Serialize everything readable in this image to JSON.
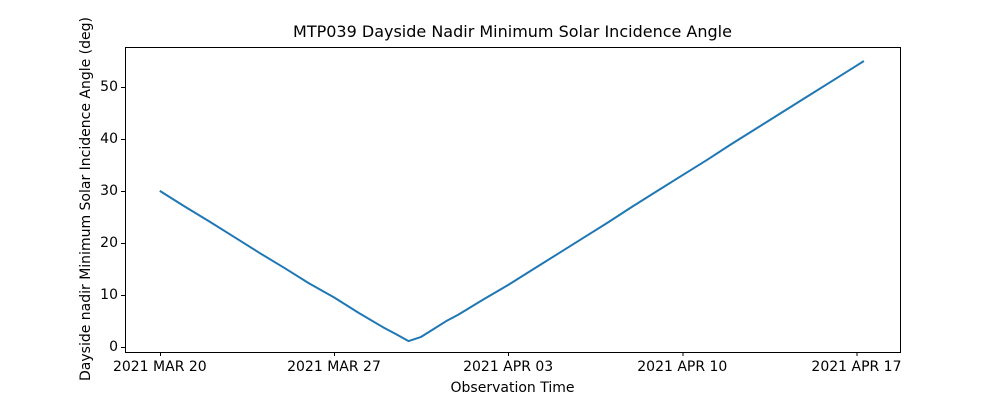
{
  "figure": {
    "title": "MTP039 Dayside Nadir Minimum Solar Incidence Angle",
    "xlabel": "Observation Time",
    "ylabel": "Dayside nadir Minimum Solar Incidence Angle (deg)"
  },
  "chart_data": {
    "type": "line",
    "title": "MTP039 Dayside Nadir Minimum Solar Incidence Angle",
    "xlabel": "Observation Time",
    "ylabel": "Dayside nadir Minimum Solar Incidence Angle (deg)",
    "line_color": "#1f77b4",
    "axis_color": "#000000",
    "background": "#ffffff",
    "grid": false,
    "legend": "none",
    "x_unit": "days since 2021 MAR 20",
    "xlim": [
      -1.4,
      29.75
    ],
    "ylim": [
      -1.0,
      57.7
    ],
    "xticks": [
      {
        "pos": 0,
        "label": "2021 MAR 20"
      },
      {
        "pos": 7,
        "label": "2021 MAR 27"
      },
      {
        "pos": 14,
        "label": "2021 APR 03"
      },
      {
        "pos": 21,
        "label": "2021 APR 10"
      },
      {
        "pos": 28,
        "label": "2021 APR 17"
      }
    ],
    "yticks": [
      {
        "pos": 0,
        "label": "0"
      },
      {
        "pos": 10,
        "label": "10"
      },
      {
        "pos": 20,
        "label": "20"
      },
      {
        "pos": 30,
        "label": "30"
      },
      {
        "pos": 40,
        "label": "40"
      },
      {
        "pos": 50,
        "label": "50"
      }
    ],
    "series": [
      {
        "name": "dayside-nadir-minimum-solar-incidence-angle",
        "points": [
          [
            0,
            30.0
          ],
          [
            1,
            27.0
          ],
          [
            2,
            24.1
          ],
          [
            3,
            21.1
          ],
          [
            4,
            18.1
          ],
          [
            5,
            15.2
          ],
          [
            6,
            12.2
          ],
          [
            7,
            9.5
          ],
          [
            8,
            6.5
          ],
          [
            9,
            3.7
          ],
          [
            9.5,
            2.4
          ],
          [
            10,
            1.1
          ],
          [
            10.5,
            1.9
          ],
          [
            11,
            3.4
          ],
          [
            11.5,
            4.9
          ],
          [
            12,
            6.2
          ],
          [
            13,
            9.1
          ],
          [
            14,
            11.9
          ],
          [
            15,
            14.9
          ],
          [
            16,
            17.9
          ],
          [
            17,
            20.9
          ],
          [
            18,
            23.9
          ],
          [
            19,
            27.0
          ],
          [
            20,
            30.0
          ],
          [
            21,
            33.0
          ],
          [
            22,
            36.0
          ],
          [
            23,
            39.1
          ],
          [
            24,
            42.1
          ],
          [
            25,
            45.1
          ],
          [
            26,
            48.1
          ],
          [
            27,
            51.1
          ],
          [
            28,
            54.1
          ],
          [
            28.3,
            55.0
          ]
        ]
      }
    ]
  }
}
